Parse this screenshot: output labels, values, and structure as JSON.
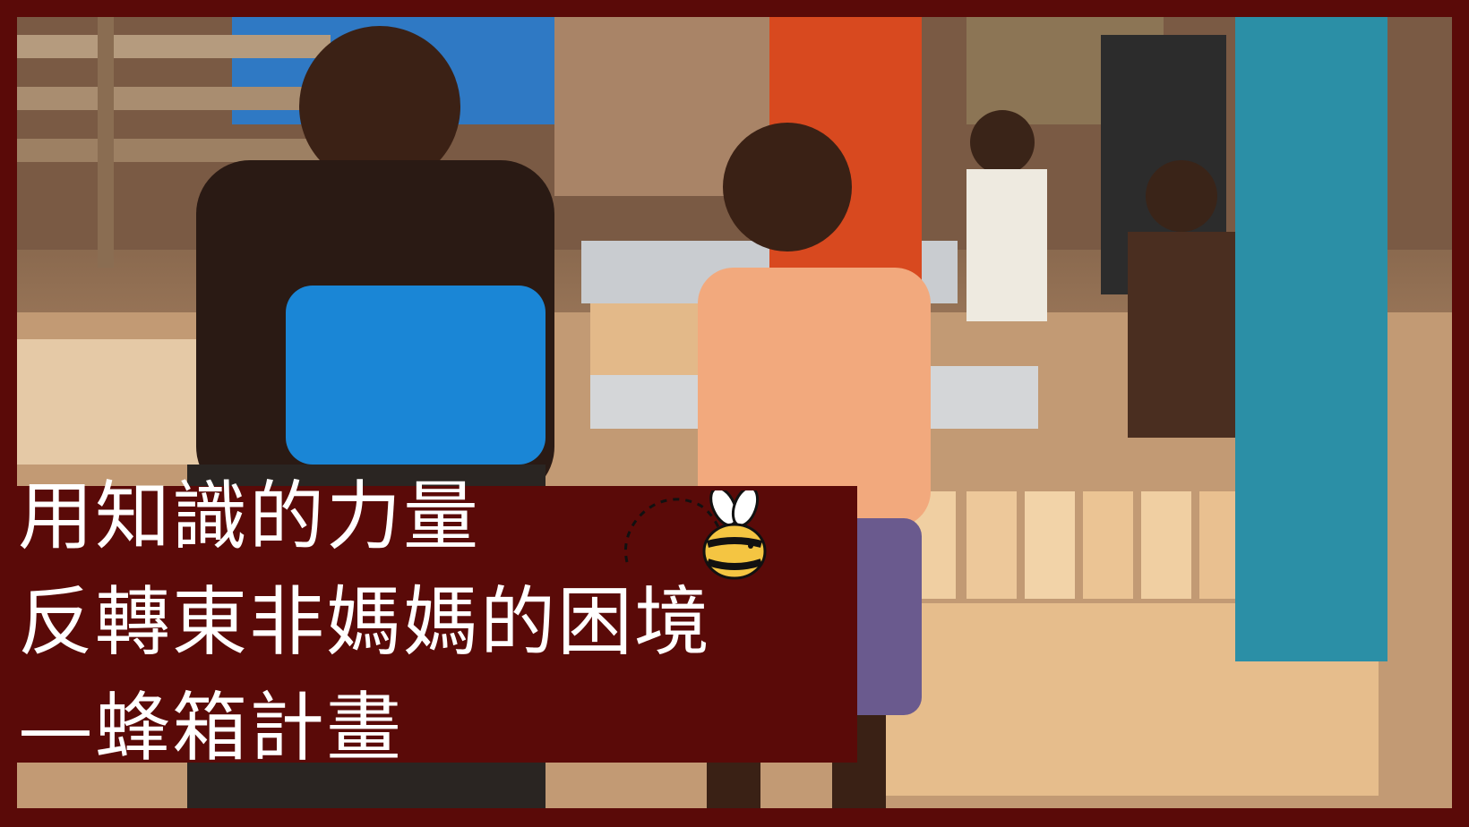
{
  "headline": {
    "line1": "用知識的力量",
    "line2": "反轉東非媽媽的困境",
    "line3": "—蜂箱計畫"
  },
  "colors": {
    "frame": "#5a0a08",
    "text": "#ffffff",
    "bee_yellow": "#f4c542",
    "wood": "#e9bf8d"
  },
  "icons": [
    "bee-icon"
  ]
}
